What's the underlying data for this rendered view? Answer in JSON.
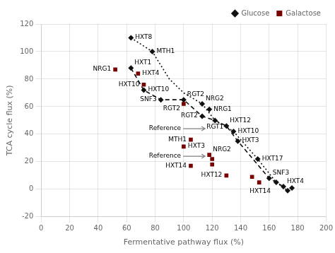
{
  "chart_data": {
    "type": "scatter",
    "xlabel": "Fermentative pathway flux (%)",
    "ylabel": "TCA cycle flux (%)",
    "xlim": [
      0,
      200
    ],
    "ylim": [
      -20,
      120
    ],
    "xticks": [
      0,
      20,
      40,
      60,
      80,
      100,
      120,
      140,
      160,
      180,
      200
    ],
    "yticks": [
      -20,
      0,
      20,
      40,
      60,
      80,
      100,
      120
    ],
    "grid": true,
    "legend": "upper right",
    "series": [
      {
        "name": "Glucose",
        "type": "scatter",
        "marker": "diamond",
        "color": "#111111",
        "x": [
          63,
          78,
          63,
          72,
          84,
          100,
          113,
          118,
          113,
          122,
          130,
          135,
          138,
          152,
          160,
          165,
          170,
          173,
          176
        ],
        "values": [
          110,
          100,
          88,
          72,
          65,
          65,
          62,
          58,
          53,
          50,
          46,
          42,
          35,
          22,
          8,
          5,
          2,
          -1,
          1
        ]
      },
      {
        "name": "Galactose",
        "type": "scatter",
        "marker": "square",
        "color": "#7a0000",
        "x": [
          52,
          68,
          72,
          100,
          100,
          105,
          105,
          118,
          120,
          120,
          130,
          148,
          153
        ],
        "values": [
          87,
          84,
          76,
          62,
          31,
          36,
          17,
          25,
          22,
          18,
          10,
          9,
          5
        ]
      },
      {
        "type": "line",
        "line_style": "dotted",
        "color": "#111111",
        "x": [
          63,
          78,
          90,
          100,
          113,
          122,
          135,
          152,
          165,
          173
        ],
        "values": [
          110,
          100,
          80,
          70,
          62,
          50,
          42,
          22,
          5,
          -1
        ]
      },
      {
        "type": "line",
        "line_style": "dashed",
        "color": "#111111",
        "x": [
          63,
          72,
          84,
          100,
          113,
          122,
          130,
          138,
          160,
          170
        ],
        "values": [
          88,
          72,
          65,
          65,
          53,
          50,
          46,
          35,
          8,
          2
        ]
      }
    ],
    "annotations": [
      {
        "text": "Reference",
        "x": 118,
        "y": 44,
        "arrow": true
      },
      {
        "text": "Reference",
        "x": 118,
        "y": 24,
        "arrow": true
      },
      {
        "text": "HXT8",
        "x": 63,
        "y": 110
      },
      {
        "text": "MTH1",
        "x": 78,
        "y": 100
      },
      {
        "text": "HXT1",
        "x": 63,
        "y": 88
      },
      {
        "text": "HXT10",
        "x": 72,
        "y": 72
      },
      {
        "text": "SNF3",
        "x": 84,
        "y": 65
      },
      {
        "text": "RGT2",
        "x": 100,
        "y": 65
      },
      {
        "text": "NRG2",
        "x": 113,
        "y": 62
      },
      {
        "text": "NRG1",
        "x": 118,
        "y": 58
      },
      {
        "text": "RGT2",
        "x": 113,
        "y": 53
      },
      {
        "text": "RGT1",
        "x": 122,
        "y": 50
      },
      {
        "text": "HXT12",
        "x": 130,
        "y": 46
      },
      {
        "text": "HXT10",
        "x": 135,
        "y": 42
      },
      {
        "text": "HXT3",
        "x": 138,
        "y": 35
      },
      {
        "text": "HXT17",
        "x": 152,
        "y": 22
      },
      {
        "text": "SNF3",
        "x": 160,
        "y": 8
      },
      {
        "text": "HXT14",
        "x": 165,
        "y": 5
      },
      {
        "text": "HXT4",
        "x": 170,
        "y": 2
      },
      {
        "text": "NRG1",
        "x": 52,
        "y": 87
      },
      {
        "text": "HXT4",
        "x": 68,
        "y": 84
      },
      {
        "text": "HXT10",
        "x": 72,
        "y": 76
      },
      {
        "text": "RGT2",
        "x": 100,
        "y": 62
      },
      {
        "text": "HXT3",
        "x": 100,
        "y": 31
      },
      {
        "text": "MTH1",
        "x": 105,
        "y": 36
      },
      {
        "text": "HXT14",
        "x": 105,
        "y": 17
      },
      {
        "text": "NRG2",
        "x": 118,
        "y": 25
      },
      {
        "text": "HXT12",
        "x": 130,
        "y": 10
      }
    ]
  }
}
